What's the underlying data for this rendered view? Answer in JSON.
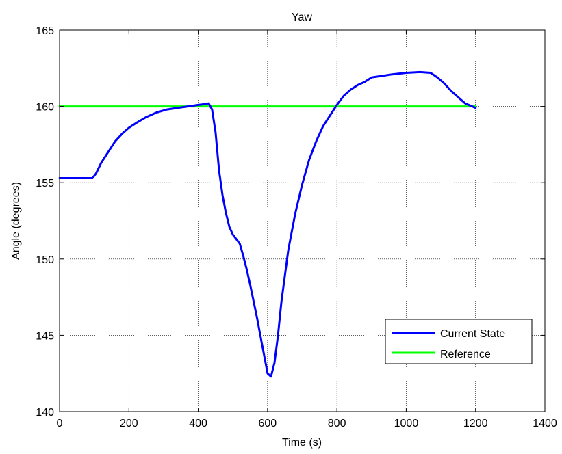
{
  "chart_data": {
    "type": "line",
    "title": "Yaw",
    "xlabel": "Time (s)",
    "ylabel": "Angle (degrees)",
    "xlim": [
      0,
      1400
    ],
    "ylim": [
      140,
      165
    ],
    "xticks": [
      0,
      200,
      400,
      600,
      800,
      1000,
      1200,
      1400
    ],
    "yticks": [
      140,
      145,
      150,
      155,
      160,
      165
    ],
    "grid": true,
    "legend_position": "bottom-right",
    "series": [
      {
        "name": "Current State",
        "color": "#0000ff",
        "x": [
          0,
          95,
          105,
          120,
          140,
          160,
          180,
          200,
          220,
          250,
          280,
          310,
          340,
          370,
          400,
          420,
          430,
          440,
          450,
          460,
          470,
          480,
          490,
          500,
          510,
          520,
          530,
          540,
          550,
          560,
          570,
          580,
          590,
          600,
          610,
          620,
          630,
          640,
          660,
          680,
          700,
          720,
          740,
          760,
          780,
          800,
          820,
          840,
          860,
          880,
          900,
          930,
          960,
          1000,
          1040,
          1070,
          1090,
          1110,
          1130,
          1150,
          1170,
          1200
        ],
        "y": [
          155.3,
          155.3,
          155.6,
          156.3,
          157.0,
          157.7,
          158.2,
          158.6,
          158.9,
          159.3,
          159.6,
          159.8,
          159.9,
          160.0,
          160.1,
          160.15,
          160.2,
          159.8,
          158.3,
          155.8,
          154.2,
          153.0,
          152.1,
          151.6,
          151.3,
          151.0,
          150.2,
          149.3,
          148.3,
          147.2,
          146.1,
          144.9,
          143.7,
          142.5,
          142.3,
          143.2,
          145.0,
          147.2,
          150.6,
          153.0,
          154.9,
          156.5,
          157.7,
          158.7,
          159.4,
          160.1,
          160.7,
          161.1,
          161.4,
          161.6,
          161.9,
          162.0,
          162.1,
          162.2,
          162.25,
          162.2,
          161.9,
          161.5,
          161.0,
          160.6,
          160.2,
          159.9
        ]
      },
      {
        "name": "Reference",
        "color": "#00ff00",
        "x": [
          0,
          1200
        ],
        "y": [
          160,
          160
        ]
      }
    ]
  }
}
